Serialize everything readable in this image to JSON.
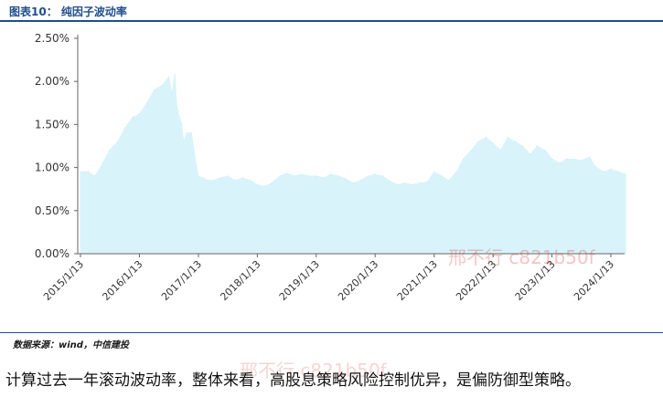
{
  "header": {
    "title": "图表10： 纯因子波动率"
  },
  "chart_data": {
    "type": "area",
    "title": "",
    "xlabel": "",
    "ylabel": "",
    "ylim": [
      0,
      2.5
    ],
    "y_ticks": [
      "0.00%",
      "0.50%",
      "1.00%",
      "1.50%",
      "2.00%",
      "2.50%"
    ],
    "x_ticks": [
      "2015/1/13",
      "2016/1/13",
      "2017/1/13",
      "2018/1/13",
      "2019/1/13",
      "2020/1/13",
      "2021/1/13",
      "2022/1/13",
      "2023/1/13",
      "2024/1/13"
    ],
    "x_start": "2015/1/13",
    "fill_color": "#d9f3fa",
    "grid": false,
    "series": [
      {
        "x": [
          "2015/1/13",
          "2015/3/1",
          "2015/4/13",
          "2015/6/1",
          "2015/7/13",
          "2015/9/1",
          "2015/10/13",
          "2015/12/1",
          "2016/1/13",
          "2016/3/1",
          "2016/4/13",
          "2016/6/1",
          "2016/7/13",
          "2016/8/1",
          "2016/8/20",
          "2016/9/1",
          "2016/10/1",
          "2016/10/13",
          "2016/11/1",
          "2016/12/1",
          "2017/1/1",
          "2017/1/13",
          "2017/2/13",
          "2017/3/13",
          "2017/4/13",
          "2017/6/1",
          "2017/7/13",
          "2017/9/1",
          "2017/10/13",
          "2017/12/1",
          "2018/1/13",
          "2018/3/1",
          "2018/4/13",
          "2018/6/1",
          "2018/7/13",
          "2018/9/1",
          "2018/10/13",
          "2018/12/1",
          "2019/1/13",
          "2019/3/1",
          "2019/4/13",
          "2019/6/1",
          "2019/7/13",
          "2019/9/1",
          "2019/10/13",
          "2019/12/1",
          "2020/1/13",
          "2020/3/1",
          "2020/4/13",
          "2020/6/1",
          "2020/7/13",
          "2020/9/1",
          "2020/10/13",
          "2020/12/1",
          "2021/1/13",
          "2021/3/1",
          "2021/4/13",
          "2021/6/1",
          "2021/7/13",
          "2021/9/1",
          "2021/10/13",
          "2021/12/1",
          "2022/1/13",
          "2022/3/1",
          "2022/4/13",
          "2022/6/1",
          "2022/7/13",
          "2022/9/1",
          "2022/10/13",
          "2022/12/1",
          "2023/1/13",
          "2023/3/1",
          "2023/4/13",
          "2023/6/1",
          "2023/7/13",
          "2023/9/1",
          "2023/10/13",
          "2023/12/1",
          "2024/1/13",
          "2024/3/1",
          "2024/4/13"
        ],
        "values": [
          0.95,
          0.95,
          0.9,
          1.05,
          1.2,
          1.3,
          1.45,
          1.58,
          1.62,
          1.75,
          1.9,
          1.95,
          2.05,
          1.85,
          2.08,
          1.7,
          1.5,
          1.3,
          1.4,
          1.4,
          1.0,
          0.9,
          0.88,
          0.85,
          0.85,
          0.88,
          0.9,
          0.85,
          0.88,
          0.85,
          0.8,
          0.78,
          0.82,
          0.9,
          0.93,
          0.9,
          0.92,
          0.9,
          0.9,
          0.88,
          0.92,
          0.9,
          0.87,
          0.82,
          0.85,
          0.9,
          0.92,
          0.9,
          0.84,
          0.8,
          0.82,
          0.8,
          0.82,
          0.83,
          0.95,
          0.9,
          0.85,
          0.95,
          1.1,
          1.2,
          1.3,
          1.35,
          1.28,
          1.2,
          1.35,
          1.3,
          1.25,
          1.15,
          1.25,
          1.2,
          1.1,
          1.05,
          1.1,
          1.1,
          1.08,
          1.12,
          1.0,
          0.95,
          0.98,
          0.95,
          0.92
        ]
      }
    ]
  },
  "source": "数据来源：wind，中信建投",
  "caption": "计算过去一年滚动波动率，整体来看，高股息策略风险控制优异，是偏防御型策略。",
  "watermarks": [
    "邢不行 c821b50f",
    "邢不行 c821b50f"
  ]
}
